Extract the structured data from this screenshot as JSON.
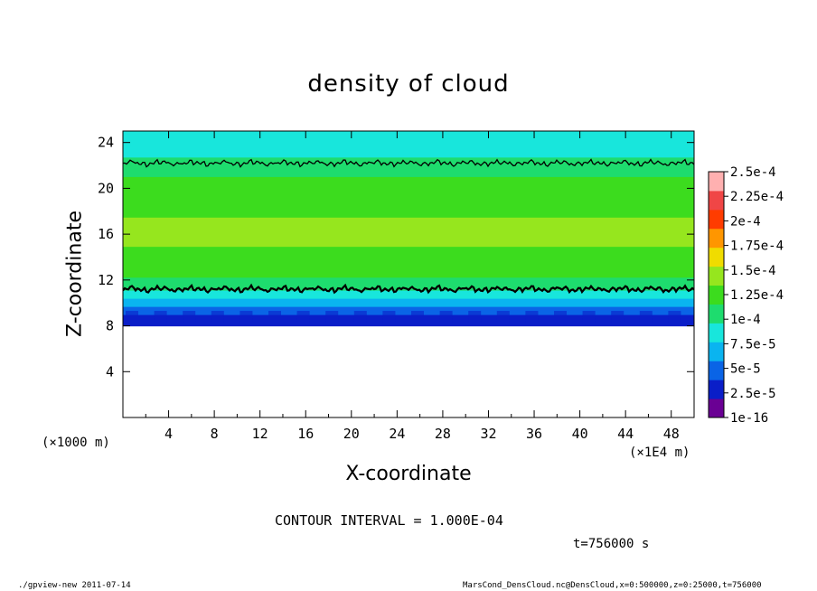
{
  "chart_data": {
    "type": "heatmap",
    "title": "density of cloud",
    "xlabel": "X-coordinate",
    "ylabel": "Z-coordinate",
    "x_scale_note": "(×1000 m)",
    "x_unit_note": "(×1E4 m)",
    "xlim": [
      0,
      50
    ],
    "ylim": [
      0,
      25
    ],
    "xticks": [
      "4",
      "8",
      "12",
      "16",
      "20",
      "24",
      "28",
      "32",
      "36",
      "40",
      "44",
      "48"
    ],
    "yticks": [
      "4",
      "8",
      "12",
      "16",
      "20",
      "24"
    ],
    "xtick_values": [
      4,
      8,
      12,
      16,
      20,
      24,
      28,
      32,
      36,
      40,
      44,
      48
    ],
    "ytick_values": [
      4,
      8,
      12,
      16,
      20,
      24
    ],
    "field_profile_by_z": [
      {
        "z": 8.0,
        "value": 1e-16
      },
      {
        "z": 8.6,
        "value": 1.2e-05
      },
      {
        "z": 9.3,
        "value": 3e-05
      },
      {
        "z": 10.0,
        "value": 5.5e-05
      },
      {
        "z": 10.8,
        "value": 8e-05
      },
      {
        "z": 11.5,
        "value": 0.0001
      },
      {
        "z": 13.0,
        "value": 0.00013
      },
      {
        "z": 16.0,
        "value": 0.00014
      },
      {
        "z": 20.0,
        "value": 0.00013
      },
      {
        "z": 22.0,
        "value": 0.0001
      },
      {
        "z": 23.5,
        "value": 8e-05
      },
      {
        "z": 25.0,
        "value": 7e-05
      }
    ],
    "contour_levels_z": [
      11.2,
      22.2
    ],
    "colorbar": {
      "labels": [
        "1e-16",
        "2.5e-5",
        "5e-5",
        "7.5e-5",
        "1e-4",
        "1.25e-4",
        "1.5e-4",
        "1.75e-4",
        "2e-4",
        "2.25e-4",
        "2.5e-4"
      ],
      "colors": [
        "#6a0094",
        "#0a1ec8",
        "#0a64e6",
        "#0ab4f0",
        "#18e6dc",
        "#1edc6e",
        "#3cdc1e",
        "#96e61e",
        "#f0dc00",
        "#ff9600",
        "#ff3c00",
        "#f04646",
        "#ffb0b0"
      ]
    }
  },
  "annotations": {
    "contour_interval": "CONTOUR INTERVAL = 1.000E-04",
    "time": "t=756000 s",
    "footer_left": "./gpview-new 2011-07-14",
    "footer_right": "MarsCond_DensCloud.nc@DensCloud,x=0:500000,z=0:25000,t=756000"
  }
}
